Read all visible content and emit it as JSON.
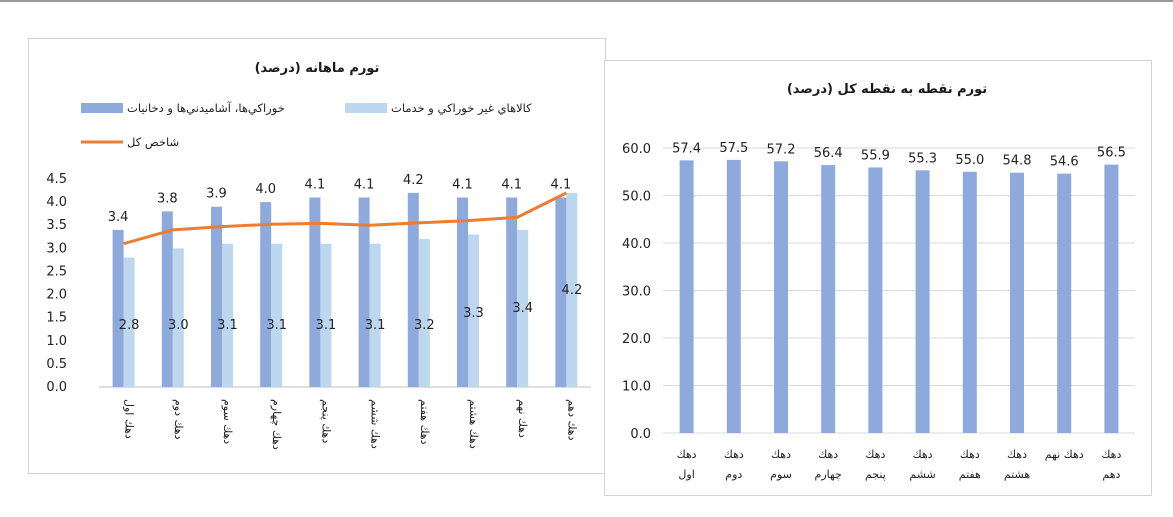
{
  "colors": {
    "bar_dark": "#8ea9db",
    "bar_light": "#bdd7ee",
    "line_total": "#ed7d31",
    "grid": "#d9d9d9"
  },
  "chart_data": [
    {
      "type": "bar",
      "title": "تورم ماهانه (درصد)",
      "categories": [
        "دهك اول",
        "دهك دوم",
        "دهك سوم",
        "دهك چهارم",
        "دهك پنجم",
        "دهك ششم",
        "دهك هفتم",
        "دهك هشتم",
        "دهك نهم",
        "دهك دهم"
      ],
      "series": [
        {
          "name": "خوراكي‌ها، آشاميدني‌ها و دخانيات",
          "kind": "bar",
          "color": "#8ea9db",
          "values": [
            3.4,
            3.8,
            3.9,
            4.0,
            4.1,
            4.1,
            4.2,
            4.1,
            4.1,
            4.1
          ]
        },
        {
          "name": "كالاهاي غير خوراكي و خدمات",
          "kind": "bar",
          "color": "#bdd7ee",
          "values": [
            2.8,
            3.0,
            3.1,
            3.1,
            3.1,
            3.1,
            3.2,
            3.3,
            3.4,
            4.2
          ]
        },
        {
          "name": "شاخص كل",
          "kind": "line",
          "color": "#ed7d31",
          "values": [
            3.1,
            3.4,
            3.47,
            3.52,
            3.54,
            3.5,
            3.55,
            3.6,
            3.67,
            4.2
          ]
        }
      ],
      "ylim": [
        0,
        4.5
      ],
      "yticks": [
        "4.5",
        "4.0",
        "3.5",
        "3.0",
        "2.5",
        "2.0",
        "1.5",
        "1.0",
        "0.5",
        "0.0"
      ],
      "legend_position": "top",
      "grid": false
    },
    {
      "type": "bar",
      "title": "تورم نقطه به نقطه کل (درصد)",
      "categories": [
        [
          "دهك",
          "اول"
        ],
        [
          "دهك",
          "دوم"
        ],
        [
          "دهك",
          "سوم"
        ],
        [
          "دهك",
          "چهارم"
        ],
        [
          "دهك",
          "پنجم"
        ],
        [
          "دهك",
          "ششم"
        ],
        [
          "دهك",
          "هفتم"
        ],
        [
          "دهك",
          "هشتم"
        ],
        [
          "دهك نهم",
          ""
        ],
        [
          "دهك",
          "دهم"
        ]
      ],
      "series": [
        {
          "name": "",
          "color": "#8ea9db",
          "values": [
            57.4,
            57.5,
            57.2,
            56.4,
            55.9,
            55.3,
            55.0,
            54.8,
            54.6,
            56.5
          ]
        }
      ],
      "value_labels": [
        "57.4",
        "57.5",
        "57.2",
        "56.4",
        "55.9",
        "55.3",
        "55.0",
        "54.8",
        "54.6",
        "56.5"
      ],
      "ylim": [
        0,
        60
      ],
      "yticks": [
        "60.0",
        "50.0",
        "40.0",
        "30.0",
        "20.0",
        "10.0",
        "0.0"
      ],
      "grid": true
    }
  ]
}
